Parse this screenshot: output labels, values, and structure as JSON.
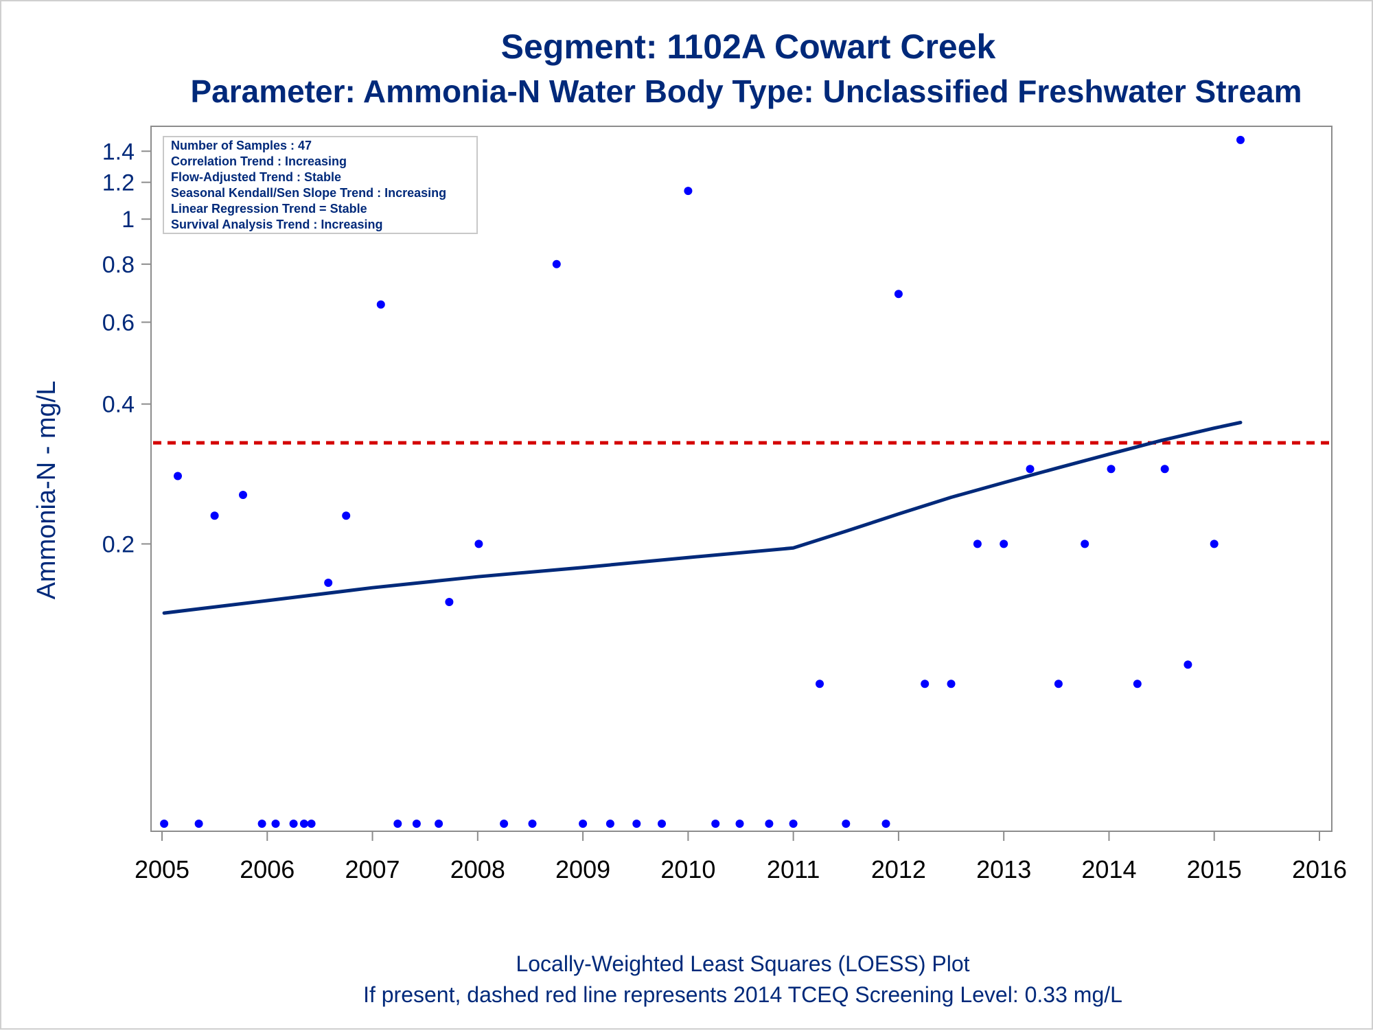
{
  "chart_data": {
    "type": "scatter",
    "title": "Segment: 1102A  Cowart Creek",
    "subtitle": "Parameter: Ammonia-N   Water Body Type: Unclassified Freshwater Stream",
    "ylabel": "Ammonia-N - mg/L",
    "xlabel": "",
    "y_scale": "log",
    "xlim": [
      2005,
      2016
    ],
    "ylim": [
      0.05,
      1.5
    ],
    "x_ticks": [
      2005,
      2006,
      2007,
      2008,
      2009,
      2010,
      2011,
      2012,
      2013,
      2014,
      2015,
      2016
    ],
    "y_ticks": [
      0.2,
      0.4,
      0.6,
      0.8,
      1,
      1.2,
      1.4
    ],
    "grid": false,
    "colors": {
      "points": "#0000ff",
      "loess": "#00297a",
      "screening": "#d40000",
      "text": "#00297a"
    },
    "stats_box": {
      "location": "top-left",
      "lines": [
        "Number of Samples : 47",
        "Correlation Trend : Increasing",
        "Flow-Adjusted Trend : Stable",
        "Seasonal Kendall/Sen Slope Trend : Increasing",
        "Linear Regression Trend = Stable",
        "Survival Analysis Trend : Increasing"
      ]
    },
    "series": [
      {
        "kind": "points",
        "x": [
          2005.02,
          2005.15,
          2005.35,
          2005.5,
          2005.77,
          2005.95,
          2006.08,
          2006.25,
          2006.35,
          2006.42,
          2006.58,
          2006.75,
          2007.08,
          2007.24,
          2007.42,
          2007.63,
          2007.73,
          2008.01,
          2008.25,
          2008.52,
          2008.75,
          2009.0,
          2009.26,
          2009.51,
          2009.75,
          2010.0,
          2010.26,
          2010.49,
          2010.77,
          2011.0,
          2011.25,
          2011.5,
          2011.88,
          2012.0,
          2012.25,
          2012.5,
          2012.75,
          2013.0,
          2013.25,
          2013.52,
          2013.77,
          2014.02,
          2014.27,
          2014.53,
          2014.75,
          2015.0,
          2015.25
        ],
        "y": [
          0.05,
          0.28,
          0.05,
          0.23,
          0.255,
          0.05,
          0.05,
          0.05,
          0.05,
          0.05,
          0.165,
          0.23,
          0.655,
          0.05,
          0.05,
          0.05,
          0.15,
          0.2,
          0.05,
          0.05,
          0.8,
          0.05,
          0.05,
          0.05,
          0.05,
          1.15,
          0.05,
          0.05,
          0.05,
          0.05,
          0.1,
          0.05,
          0.05,
          0.69,
          0.1,
          0.1,
          0.2,
          0.2,
          0.29,
          0.1,
          0.2,
          0.29,
          0.1,
          0.29,
          0.11,
          0.2,
          1.48
        ]
      },
      {
        "kind": "loess",
        "x": [
          2005.02,
          2006.0,
          2007.0,
          2008.0,
          2009.0,
          2010.0,
          2011.0,
          2011.5,
          2012.0,
          2012.5,
          2013.0,
          2013.5,
          2014.0,
          2014.5,
          2015.0,
          2015.25
        ],
        "y": [
          0.142,
          0.151,
          0.161,
          0.17,
          0.178,
          0.187,
          0.196,
          0.213,
          0.232,
          0.252,
          0.271,
          0.291,
          0.312,
          0.334,
          0.355,
          0.365
        ]
      },
      {
        "kind": "reference",
        "y": 0.33
      }
    ],
    "footnote_1": "Locally-Weighted Least Squares (LOESS) Plot",
    "footnote_2": "If present, dashed red line represents 2014 TCEQ Screening Level: 0.33 mg/L"
  }
}
